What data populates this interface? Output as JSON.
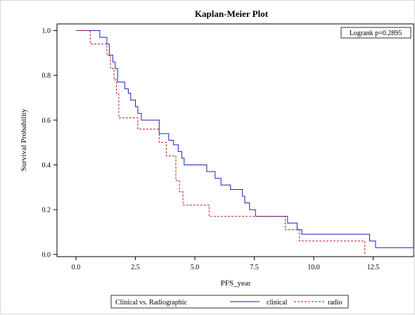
{
  "chart_data": {
    "type": "line",
    "step": true,
    "title": "Kaplan-Meier Plot",
    "xlabel": "PFS_year",
    "ylabel": "Survival Probability",
    "xlim": [
      -0.8,
      14.2
    ],
    "ylim": [
      -0.01,
      1.03
    ],
    "x_ticks": [
      0,
      2.5,
      5,
      7.5,
      10,
      12.5
    ],
    "x_tick_labels": [
      "0.0",
      "2.5",
      "5.0",
      "7.5",
      "10.0",
      "12.5"
    ],
    "y_ticks": [
      0,
      0.2,
      0.4,
      0.6,
      0.8,
      1.0
    ],
    "y_tick_labels": [
      "0.0",
      "0.2",
      "0.4",
      "0.6",
      "0.8",
      "1.0"
    ],
    "grid": false,
    "annotation": "Logrank p=0.2895",
    "legend": {
      "title": "Clinical vs. Radiographic",
      "placement": "bottom"
    },
    "series": [
      {
        "name": "clinical",
        "color": "#1f1fbf",
        "dash": "solid",
        "x": [
          0,
          1.0,
          1.3,
          1.4,
          1.55,
          1.65,
          1.75,
          2.05,
          2.2,
          2.3,
          2.5,
          2.6,
          2.75,
          3.5,
          3.9,
          4.1,
          4.3,
          4.45,
          4.55,
          4.75,
          5.5,
          5.85,
          6.1,
          6.5,
          7.0,
          7.1,
          7.3,
          7.55,
          7.7,
          8.9,
          9.3,
          9.5,
          12.35,
          12.6,
          14.2
        ],
        "y": [
          1.0,
          0.97,
          0.94,
          0.89,
          0.86,
          0.83,
          0.77,
          0.74,
          0.72,
          0.69,
          0.66,
          0.63,
          0.6,
          0.54,
          0.51,
          0.49,
          0.46,
          0.43,
          0.4,
          0.4,
          0.37,
          0.34,
          0.31,
          0.29,
          0.26,
          0.23,
          0.2,
          0.17,
          0.17,
          0.14,
          0.11,
          0.09,
          0.06,
          0.03,
          0.0
        ]
      },
      {
        "name": "radio",
        "color": "#c01818",
        "dash": "3,2",
        "x": [
          0,
          0.6,
          1.3,
          1.45,
          1.6,
          1.7,
          1.8,
          2.6,
          2.65,
          3.5,
          3.8,
          4.2,
          4.35,
          4.5,
          5.6,
          8.8,
          9.4,
          12.15
        ],
        "y": [
          1.0,
          0.94,
          0.89,
          0.83,
          0.78,
          0.72,
          0.61,
          0.56,
          0.56,
          0.5,
          0.44,
          0.33,
          0.28,
          0.22,
          0.17,
          0.11,
          0.06,
          0.0
        ]
      }
    ]
  }
}
